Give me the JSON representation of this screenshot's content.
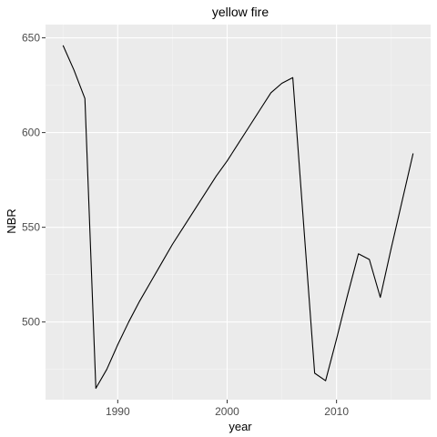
{
  "chart_data": {
    "type": "line",
    "title": "yellow fire",
    "xlabel": "year",
    "ylabel": "NBR",
    "xlim": [
      1983.4,
      2018.6
    ],
    "ylim": [
      459,
      657
    ],
    "x_ticks": [
      1990,
      2000,
      2010
    ],
    "y_ticks": [
      500,
      550,
      600,
      650
    ],
    "x_minor": [
      1985,
      1995,
      2005,
      2015
    ],
    "y_minor": [
      475,
      525,
      575,
      625
    ],
    "grid": true,
    "legend": "none",
    "series": [
      {
        "color": "#000000",
        "x": [
          1985,
          1986,
          1987,
          1988,
          1989,
          1990,
          1991,
          1992,
          1993,
          1994,
          1995,
          1996,
          1997,
          1998,
          1999,
          2000,
          2001,
          2002,
          2003,
          2004,
          2005,
          2006,
          2007,
          2008,
          2009,
          2010,
          2011,
          2012,
          2013,
          2014,
          2015,
          2016,
          2017
        ],
        "y": [
          646,
          633,
          618,
          465,
          475,
          488,
          500,
          511,
          521,
          531,
          541,
          550,
          559,
          568,
          577,
          585,
          594,
          603,
          612,
          621,
          626,
          629,
          551,
          473,
          469,
          491,
          514,
          536,
          533,
          513,
          539,
          564,
          589
        ]
      }
    ],
    "colors": {
      "panel": "#ebebeb",
      "grid_major": "#ffffff",
      "grid_minor": "#f5f5f5",
      "tick": "#333333",
      "tick_label": "#4d4d4d"
    }
  }
}
